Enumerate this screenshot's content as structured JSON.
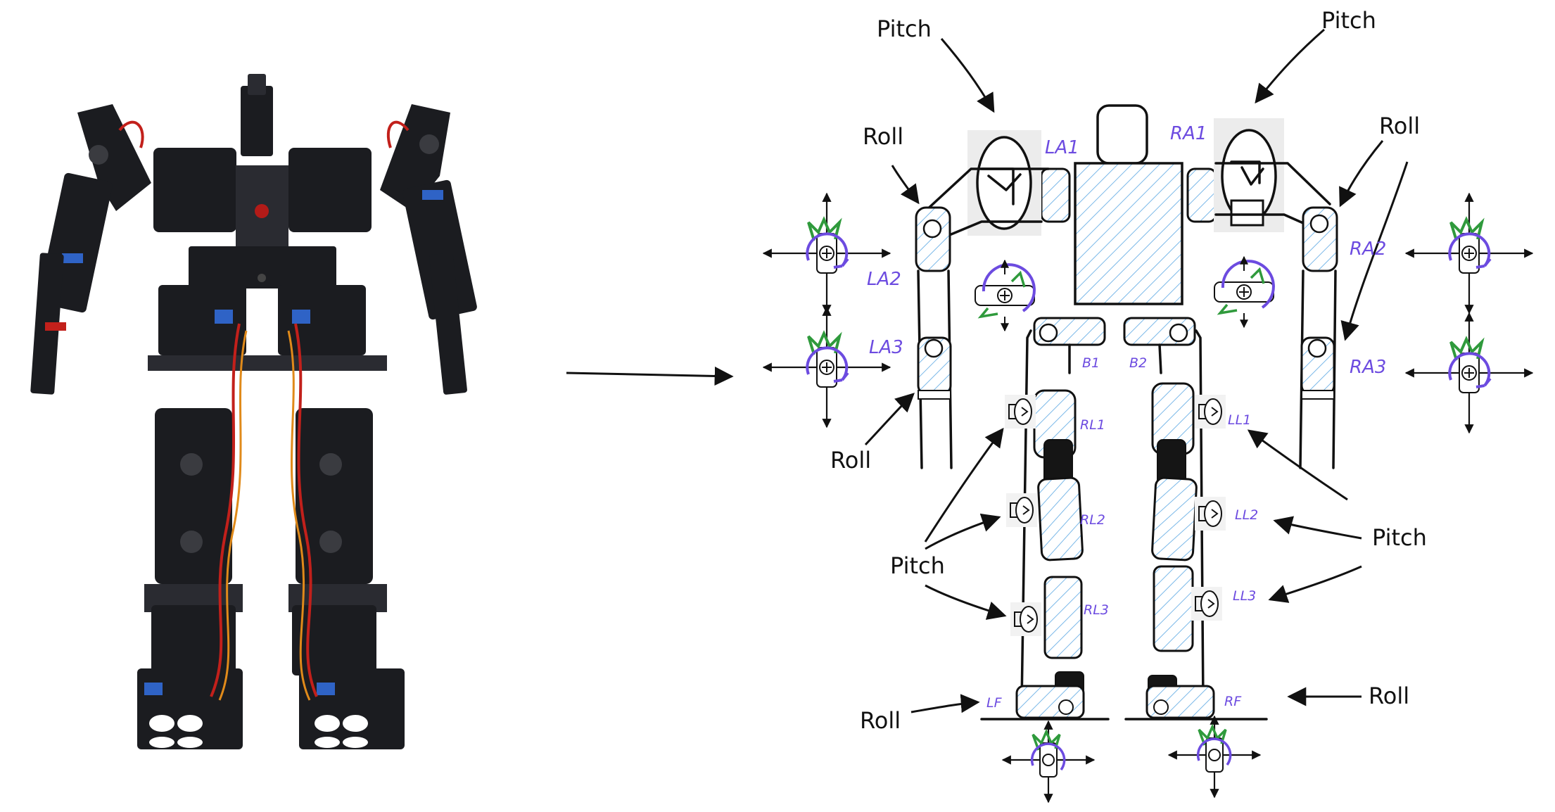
{
  "labels": {
    "pitch": "Pitch",
    "roll": "Roll"
  },
  "joints": {
    "la1": "LA1",
    "la2": "LA2",
    "la3": "LA3",
    "ra1": "RA1",
    "ra2": "RA2",
    "ra3": "RA3",
    "b1": "B1",
    "b2": "B2",
    "rl1": "RL1",
    "rl2": "RL2",
    "rl3": "RL3",
    "ll1": "LL1",
    "ll2": "LL2",
    "ll3": "LL3",
    "lf": "LF",
    "rf": "RF"
  },
  "colors": {
    "ink": "#111111",
    "joint_label": "#6c4be0",
    "hatch": "#7ab8e8",
    "rotation_purple": "#6c4be0",
    "rotation_green": "#2f9a3c",
    "robot_black": "#1b1c20",
    "wire_red": "#c2201b",
    "wire_orange": "#e08a1a"
  },
  "icons": {
    "photo": "humanoid-robot-photo",
    "transform_arrow": "arrow-right-icon",
    "rotation_gizmo": "servo-rotation-icon",
    "pitch_drum": "pitch-rotation-icon"
  }
}
